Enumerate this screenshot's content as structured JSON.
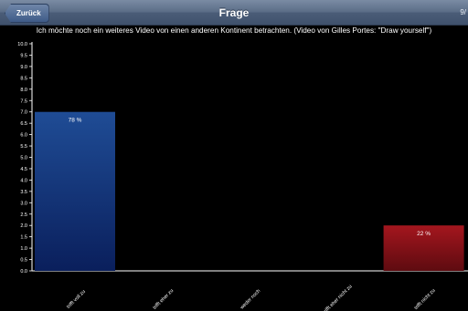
{
  "navbar": {
    "back_label": "Zurück",
    "title": "Frage",
    "counter": "9/"
  },
  "question": "Ich möchte noch ein weiteres Video von einen anderen Kontinent betrachten. (Video von Gilles Portes: \"Draw yourself\")",
  "colors": {
    "blue_top": "#1f4c95",
    "blue_bottom": "#0a1f5c",
    "red_top": "#a4161e",
    "red_bottom": "#5e0b10"
  },
  "chart_data": {
    "type": "bar",
    "categories": [
      "trifft voll zu",
      "trifft eher zu",
      "weder noch",
      "trifft eher nicht zu",
      "trifft nicht zu"
    ],
    "values": [
      7,
      0,
      0,
      0,
      2
    ],
    "data_labels": [
      "78 %",
      "",
      "",
      "",
      "22 %"
    ],
    "bar_colors": [
      "blue",
      "",
      "",
      "",
      "red"
    ],
    "ylim": [
      0,
      10
    ],
    "yticks": [
      "0.0",
      "0.5",
      "1.0",
      "1.5",
      "2.0",
      "2.5",
      "3.0",
      "3.5",
      "4.0",
      "4.5",
      "5.0",
      "5.5",
      "6.0",
      "6.5",
      "7.0",
      "7.5",
      "8.0",
      "8.5",
      "9.0",
      "9.5",
      "10.0"
    ],
    "grid": false,
    "title": "",
    "xlabel": "",
    "ylabel": ""
  }
}
